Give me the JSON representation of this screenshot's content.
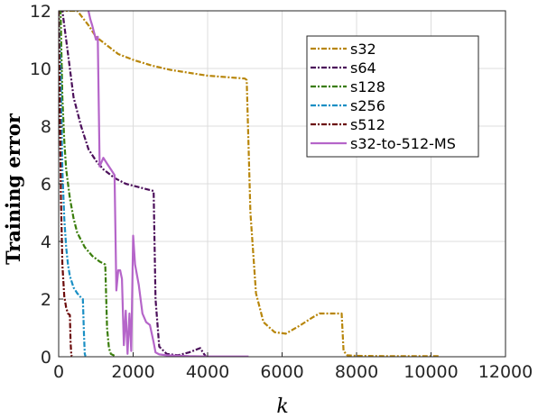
{
  "chart_data": {
    "type": "line",
    "xlabel": "k",
    "ylabel": "Training error",
    "xlim": [
      0,
      12000
    ],
    "ylim": [
      0,
      12
    ],
    "xticks": [
      0,
      2000,
      4000,
      6000,
      8000,
      10000,
      12000
    ],
    "yticks": [
      0,
      2,
      4,
      6,
      8,
      10,
      12
    ],
    "grid": true,
    "legend_position": "top-right",
    "series": [
      {
        "name": "s32",
        "color": "#b8860b",
        "style": "dashdot",
        "x": [
          0,
          300,
          500,
          800,
          1000,
          1300,
          1600,
          2000,
          2500,
          3000,
          3500,
          4000,
          4500,
          5000,
          5050,
          5150,
          5300,
          5500,
          5800,
          6100,
          6300,
          6500,
          6800,
          7000,
          7300,
          7600,
          7650,
          7750,
          8000,
          9000,
          10000,
          10200
        ],
        "y": [
          12,
          12,
          12,
          11.5,
          11.1,
          10.8,
          10.5,
          10.3,
          10.1,
          9.95,
          9.85,
          9.75,
          9.7,
          9.65,
          9.6,
          5.0,
          2.2,
          1.2,
          0.85,
          0.8,
          0.95,
          1.1,
          1.35,
          1.5,
          1.5,
          1.5,
          0.2,
          0.05,
          0.03,
          0.02,
          0.02,
          0.02
        ]
      },
      {
        "name": "s64",
        "color": "#4b0f5a",
        "style": "dashdot",
        "x": [
          0,
          100,
          200,
          300,
          400,
          600,
          800,
          1000,
          1200,
          1500,
          1800,
          2100,
          2400,
          2550,
          2600,
          2700,
          2900,
          3200,
          3500,
          3800,
          3900,
          3950
        ],
        "y": [
          12,
          12,
          11,
          10,
          9,
          8,
          7.2,
          6.8,
          6.5,
          6.2,
          6.0,
          5.9,
          5.8,
          5.75,
          2.0,
          0.35,
          0.1,
          0.05,
          0.15,
          0.3,
          0.1,
          0.02
        ]
      },
      {
        "name": "s128",
        "color": "#3a7d0b",
        "style": "dashdot",
        "x": [
          0,
          50,
          100,
          150,
          200,
          300,
          400,
          500,
          700,
          900,
          1100,
          1250,
          1300,
          1350,
          1400,
          1500
        ],
        "y": [
          12,
          12,
          9,
          7.5,
          6.5,
          5.5,
          4.8,
          4.3,
          3.8,
          3.5,
          3.3,
          3.2,
          1.0,
          0.3,
          0.1,
          0.03
        ]
      },
      {
        "name": "s256",
        "color": "#1a8fc4",
        "style": "dashdot",
        "x": [
          0,
          50,
          100,
          150,
          200,
          250,
          300,
          400,
          500,
          600,
          650,
          680,
          700,
          720
        ],
        "y": [
          12,
          10,
          6.5,
          4.8,
          3.8,
          3.2,
          2.8,
          2.4,
          2.2,
          2.05,
          2.0,
          0.8,
          0.1,
          0.02
        ]
      },
      {
        "name": "s512",
        "color": "#6b0a0a",
        "style": "dashdot",
        "x": [
          0,
          30,
          60,
          100,
          150,
          200,
          250,
          300,
          320,
          340,
          360
        ],
        "y": [
          12,
          9,
          5.5,
          3.2,
          2.1,
          1.7,
          1.5,
          1.45,
          0.5,
          0.05,
          0.02
        ]
      },
      {
        "name": "s32-to-512-MS",
        "color": "#b565c9",
        "style": "solid",
        "x": [
          800,
          850,
          900,
          1000,
          1050,
          1100,
          1200,
          1300,
          1400,
          1500,
          1550,
          1600,
          1650,
          1700,
          1750,
          1800,
          1850,
          1900,
          1950,
          2000,
          2050,
          2150,
          2250,
          2350,
          2450,
          2550,
          2600,
          2700,
          2900,
          3500,
          4000,
          5000,
          5100
        ],
        "y": [
          12,
          11.7,
          11.5,
          11.0,
          11.1,
          6.6,
          6.9,
          6.7,
          6.5,
          6.3,
          2.3,
          3.0,
          3.0,
          2.7,
          0.4,
          1.6,
          0.1,
          1.5,
          0.2,
          4.2,
          3.2,
          2.5,
          1.5,
          1.2,
          1.1,
          0.5,
          0.15,
          0.08,
          0.05,
          0.02,
          0.01,
          0.01,
          0.01
        ]
      }
    ]
  }
}
